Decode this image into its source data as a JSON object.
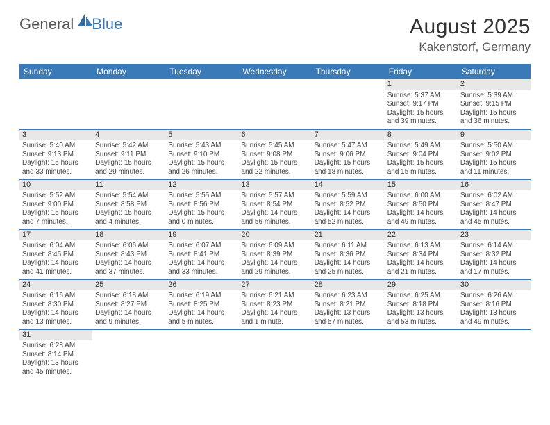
{
  "logo": {
    "text1": "General",
    "text2": "Blue"
  },
  "header": {
    "month": "August 2025",
    "location": "Kakenstorf, Germany"
  },
  "colors": {
    "header_bg": "#3a7ab8",
    "header_text": "#ffffff",
    "daynum_bg": "#e8e8e8",
    "border": "#3a7ab8",
    "body_text": "#444444",
    "title_text": "#333333",
    "page_bg": "#ffffff"
  },
  "typography": {
    "month_fontsize": 30,
    "location_fontsize": 17,
    "dayheader_fontsize": 12,
    "cell_fontsize": 10,
    "daynum_fontsize": 11
  },
  "days": [
    "Sunday",
    "Monday",
    "Tuesday",
    "Wednesday",
    "Thursday",
    "Friday",
    "Saturday"
  ],
  "weeks": [
    [
      null,
      null,
      null,
      null,
      null,
      {
        "n": "1",
        "sr": "Sunrise: 5:37 AM",
        "ss": "Sunset: 9:17 PM",
        "dl1": "Daylight: 15 hours",
        "dl2": "and 39 minutes."
      },
      {
        "n": "2",
        "sr": "Sunrise: 5:39 AM",
        "ss": "Sunset: 9:15 PM",
        "dl1": "Daylight: 15 hours",
        "dl2": "and 36 minutes."
      }
    ],
    [
      {
        "n": "3",
        "sr": "Sunrise: 5:40 AM",
        "ss": "Sunset: 9:13 PM",
        "dl1": "Daylight: 15 hours",
        "dl2": "and 33 minutes."
      },
      {
        "n": "4",
        "sr": "Sunrise: 5:42 AM",
        "ss": "Sunset: 9:11 PM",
        "dl1": "Daylight: 15 hours",
        "dl2": "and 29 minutes."
      },
      {
        "n": "5",
        "sr": "Sunrise: 5:43 AM",
        "ss": "Sunset: 9:10 PM",
        "dl1": "Daylight: 15 hours",
        "dl2": "and 26 minutes."
      },
      {
        "n": "6",
        "sr": "Sunrise: 5:45 AM",
        "ss": "Sunset: 9:08 PM",
        "dl1": "Daylight: 15 hours",
        "dl2": "and 22 minutes."
      },
      {
        "n": "7",
        "sr": "Sunrise: 5:47 AM",
        "ss": "Sunset: 9:06 PM",
        "dl1": "Daylight: 15 hours",
        "dl2": "and 18 minutes."
      },
      {
        "n": "8",
        "sr": "Sunrise: 5:49 AM",
        "ss": "Sunset: 9:04 PM",
        "dl1": "Daylight: 15 hours",
        "dl2": "and 15 minutes."
      },
      {
        "n": "9",
        "sr": "Sunrise: 5:50 AM",
        "ss": "Sunset: 9:02 PM",
        "dl1": "Daylight: 15 hours",
        "dl2": "and 11 minutes."
      }
    ],
    [
      {
        "n": "10",
        "sr": "Sunrise: 5:52 AM",
        "ss": "Sunset: 9:00 PM",
        "dl1": "Daylight: 15 hours",
        "dl2": "and 7 minutes."
      },
      {
        "n": "11",
        "sr": "Sunrise: 5:54 AM",
        "ss": "Sunset: 8:58 PM",
        "dl1": "Daylight: 15 hours",
        "dl2": "and 4 minutes."
      },
      {
        "n": "12",
        "sr": "Sunrise: 5:55 AM",
        "ss": "Sunset: 8:56 PM",
        "dl1": "Daylight: 15 hours",
        "dl2": "and 0 minutes."
      },
      {
        "n": "13",
        "sr": "Sunrise: 5:57 AM",
        "ss": "Sunset: 8:54 PM",
        "dl1": "Daylight: 14 hours",
        "dl2": "and 56 minutes."
      },
      {
        "n": "14",
        "sr": "Sunrise: 5:59 AM",
        "ss": "Sunset: 8:52 PM",
        "dl1": "Daylight: 14 hours",
        "dl2": "and 52 minutes."
      },
      {
        "n": "15",
        "sr": "Sunrise: 6:00 AM",
        "ss": "Sunset: 8:50 PM",
        "dl1": "Daylight: 14 hours",
        "dl2": "and 49 minutes."
      },
      {
        "n": "16",
        "sr": "Sunrise: 6:02 AM",
        "ss": "Sunset: 8:47 PM",
        "dl1": "Daylight: 14 hours",
        "dl2": "and 45 minutes."
      }
    ],
    [
      {
        "n": "17",
        "sr": "Sunrise: 6:04 AM",
        "ss": "Sunset: 8:45 PM",
        "dl1": "Daylight: 14 hours",
        "dl2": "and 41 minutes."
      },
      {
        "n": "18",
        "sr": "Sunrise: 6:06 AM",
        "ss": "Sunset: 8:43 PM",
        "dl1": "Daylight: 14 hours",
        "dl2": "and 37 minutes."
      },
      {
        "n": "19",
        "sr": "Sunrise: 6:07 AM",
        "ss": "Sunset: 8:41 PM",
        "dl1": "Daylight: 14 hours",
        "dl2": "and 33 minutes."
      },
      {
        "n": "20",
        "sr": "Sunrise: 6:09 AM",
        "ss": "Sunset: 8:39 PM",
        "dl1": "Daylight: 14 hours",
        "dl2": "and 29 minutes."
      },
      {
        "n": "21",
        "sr": "Sunrise: 6:11 AM",
        "ss": "Sunset: 8:36 PM",
        "dl1": "Daylight: 14 hours",
        "dl2": "and 25 minutes."
      },
      {
        "n": "22",
        "sr": "Sunrise: 6:13 AM",
        "ss": "Sunset: 8:34 PM",
        "dl1": "Daylight: 14 hours",
        "dl2": "and 21 minutes."
      },
      {
        "n": "23",
        "sr": "Sunrise: 6:14 AM",
        "ss": "Sunset: 8:32 PM",
        "dl1": "Daylight: 14 hours",
        "dl2": "and 17 minutes."
      }
    ],
    [
      {
        "n": "24",
        "sr": "Sunrise: 6:16 AM",
        "ss": "Sunset: 8:30 PM",
        "dl1": "Daylight: 14 hours",
        "dl2": "and 13 minutes."
      },
      {
        "n": "25",
        "sr": "Sunrise: 6:18 AM",
        "ss": "Sunset: 8:27 PM",
        "dl1": "Daylight: 14 hours",
        "dl2": "and 9 minutes."
      },
      {
        "n": "26",
        "sr": "Sunrise: 6:19 AM",
        "ss": "Sunset: 8:25 PM",
        "dl1": "Daylight: 14 hours",
        "dl2": "and 5 minutes."
      },
      {
        "n": "27",
        "sr": "Sunrise: 6:21 AM",
        "ss": "Sunset: 8:23 PM",
        "dl1": "Daylight: 14 hours",
        "dl2": "and 1 minute."
      },
      {
        "n": "28",
        "sr": "Sunrise: 6:23 AM",
        "ss": "Sunset: 8:21 PM",
        "dl1": "Daylight: 13 hours",
        "dl2": "and 57 minutes."
      },
      {
        "n": "29",
        "sr": "Sunrise: 6:25 AM",
        "ss": "Sunset: 8:18 PM",
        "dl1": "Daylight: 13 hours",
        "dl2": "and 53 minutes."
      },
      {
        "n": "30",
        "sr": "Sunrise: 6:26 AM",
        "ss": "Sunset: 8:16 PM",
        "dl1": "Daylight: 13 hours",
        "dl2": "and 49 minutes."
      }
    ],
    [
      {
        "n": "31",
        "sr": "Sunrise: 6:28 AM",
        "ss": "Sunset: 8:14 PM",
        "dl1": "Daylight: 13 hours",
        "dl2": "and 45 minutes."
      },
      null,
      null,
      null,
      null,
      null,
      null
    ]
  ]
}
